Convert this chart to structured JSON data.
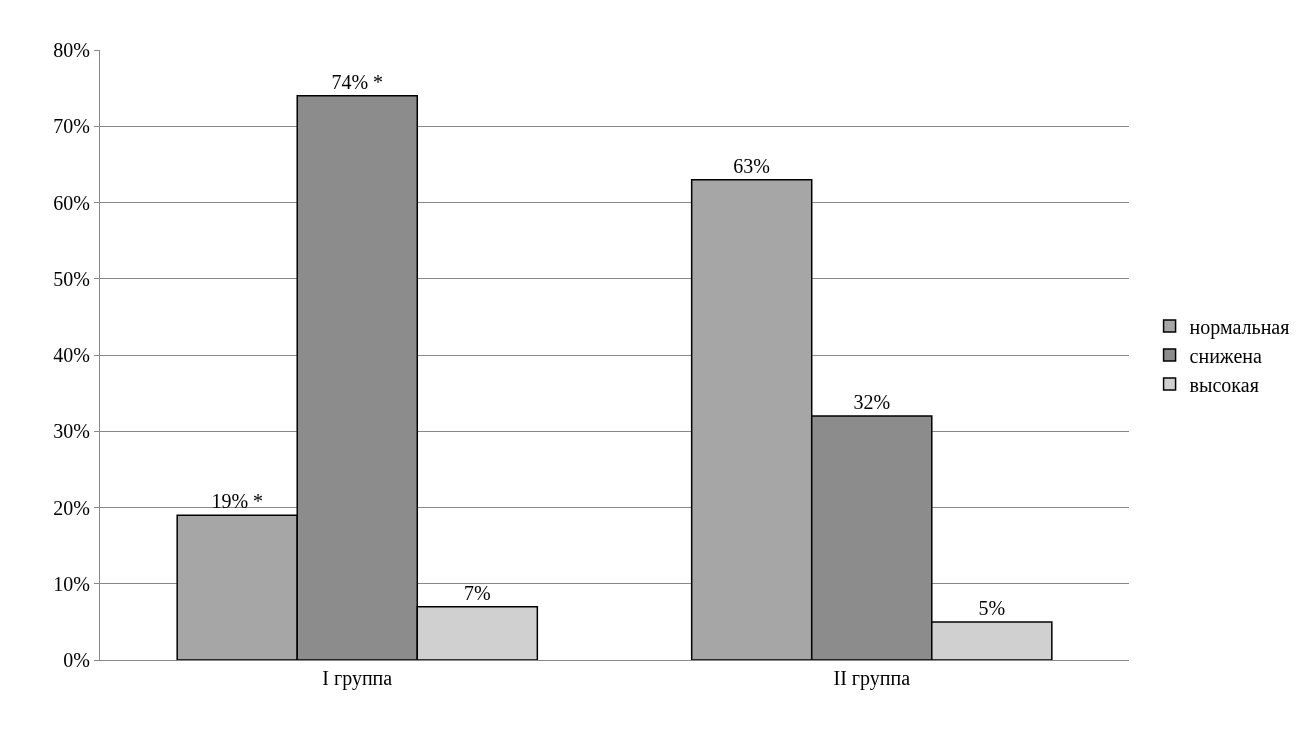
{
  "chart_data": {
    "type": "bar",
    "categories": [
      "I группа",
      "II группа"
    ],
    "series": [
      {
        "name": "нормальная",
        "color": "#a6a6a6",
        "values": [
          19,
          63
        ],
        "value_labels": [
          "19% *",
          "63%"
        ]
      },
      {
        "name": "снижена",
        "color": "#8c8c8c",
        "values": [
          74,
          32
        ],
        "value_labels": [
          "74% *",
          "32%"
        ]
      },
      {
        "name": "высокая",
        "color": "#d0d0d0",
        "values": [
          7,
          5
        ],
        "value_labels": [
          "7%",
          "5%"
        ]
      }
    ],
    "ylim": [
      0,
      80
    ],
    "yticks": [
      {
        "value": 0,
        "label": "0%"
      },
      {
        "value": 10,
        "label": "10%"
      },
      {
        "value": 20,
        "label": "20%"
      },
      {
        "value": 30,
        "label": "30%"
      },
      {
        "value": 40,
        "label": "40%"
      },
      {
        "value": 50,
        "label": "50%"
      },
      {
        "value": 60,
        "label": "60%"
      },
      {
        "value": 70,
        "label": "70%"
      },
      {
        "value": 80,
        "label": "80%"
      }
    ],
    "grid": "y",
    "legend": "right"
  }
}
